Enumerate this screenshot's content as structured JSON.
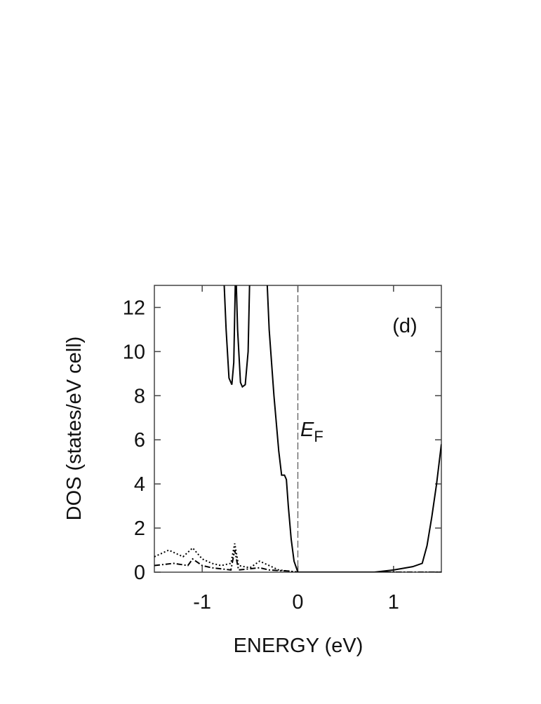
{
  "chart_data": {
    "type": "line",
    "xlabel": "ENERGY (eV)",
    "ylabel": "DOS (states/eV cell)",
    "annotation": "(d)",
    "fermi_label": {
      "main": "E",
      "sub": "F"
    },
    "fermi_level": 0,
    "xlim": [
      -1.5,
      1.5
    ],
    "xticks": [
      -1,
      0,
      1
    ],
    "ylim": [
      0,
      13
    ],
    "yticks": [
      0,
      2,
      4,
      6,
      8,
      10,
      12
    ],
    "series": [
      {
        "color": "#000000",
        "dash": "solid",
        "x": [
          -0.78,
          -0.75,
          -0.72,
          -0.69,
          -0.67,
          -0.65,
          -0.63,
          -0.6,
          -0.58,
          -0.55,
          -0.52,
          -0.5,
          -0.33,
          -0.3,
          -0.25,
          -0.2,
          -0.17,
          -0.14,
          -0.12,
          -0.1,
          -0.07,
          -0.04,
          0,
          0.4,
          0.8,
          1.0,
          1.2,
          1.3,
          1.35,
          1.4,
          1.45,
          1.5
        ],
        "values": [
          14,
          11,
          8.8,
          8.5,
          9.5,
          14,
          11,
          8.6,
          8.4,
          8.5,
          10,
          14,
          14,
          11,
          8,
          5.5,
          4.4,
          4.4,
          4.2,
          3,
          1.5,
          0.5,
          0,
          0,
          0,
          0.1,
          0.25,
          0.4,
          1.2,
          2.5,
          4,
          5.8
        ]
      },
      {
        "color": "#000000",
        "dash": "dotted",
        "x": [
          -1.5,
          -1.35,
          -1.2,
          -1.1,
          -1.0,
          -0.9,
          -0.8,
          -0.7,
          -0.66,
          -0.62,
          -0.5,
          -0.4,
          -0.3,
          -0.2,
          -0.1,
          0,
          1.5
        ],
        "values": [
          0.7,
          1.0,
          0.7,
          1.1,
          0.6,
          0.4,
          0.3,
          0.4,
          1.3,
          0.3,
          0.2,
          0.5,
          0.3,
          0.1,
          0.05,
          0,
          0
        ]
      },
      {
        "color": "#000000",
        "dash": "dashdot",
        "x": [
          -1.5,
          -1.3,
          -1.15,
          -1.1,
          -1.0,
          -0.9,
          -0.7,
          -0.66,
          -0.62,
          -0.4,
          -0.3,
          -0.1,
          0,
          1.5
        ],
        "values": [
          0.3,
          0.4,
          0.3,
          0.6,
          0.3,
          0.2,
          0.1,
          1.0,
          0.1,
          0.2,
          0.1,
          0.05,
          0,
          0
        ]
      }
    ]
  }
}
